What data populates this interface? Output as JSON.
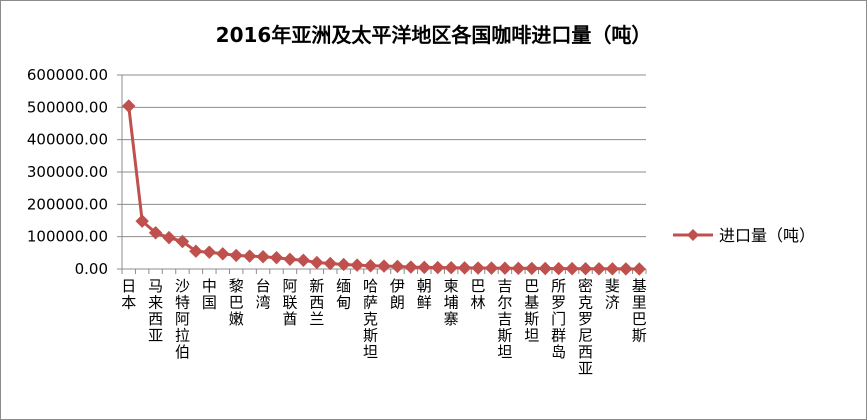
{
  "chart_data": {
    "type": "line",
    "title": "2016年亚洲及太平洋地区各国咖啡进口量（吨）",
    "xlabel": "",
    "ylabel": "",
    "ylim": [
      0,
      600000
    ],
    "yticks": [
      "0.00",
      "100000.00",
      "200000.00",
      "300000.00",
      "400000.00",
      "500000.00",
      "600000.00"
    ],
    "categories": [
      "日本",
      "",
      "马来西亚",
      "",
      "沙特阿拉伯",
      "",
      "中国",
      "",
      "黎巴嫩",
      "",
      "台湾",
      "",
      "阿联酋",
      "",
      "新西兰",
      "",
      "缅甸",
      "",
      "哈萨克斯坦",
      "",
      "伊朗",
      "",
      "朝鲜",
      "",
      "柬埔寨",
      "",
      "巴林",
      "",
      "吉尔吉斯坦",
      "",
      "巴基斯坦",
      "",
      "所罗门群岛",
      "",
      "密克罗尼西亚",
      "",
      "斐济",
      "",
      "基里巴斯"
    ],
    "series": [
      {
        "name": "进口量（吨）",
        "color": "#c0504d",
        "values": [
          504000,
          148000,
          112000,
          97000,
          85000,
          55000,
          52000,
          47000,
          42000,
          40000,
          38000,
          35000,
          30000,
          27000,
          20000,
          17000,
          14000,
          12000,
          10000,
          9000,
          8000,
          6000,
          5000,
          4500,
          4000,
          3500,
          3000,
          2700,
          2400,
          2100,
          1800,
          1500,
          1300,
          1100,
          900,
          700,
          500,
          300,
          150
        ]
      }
    ],
    "legend_position": "right",
    "grid": "horizontal"
  }
}
